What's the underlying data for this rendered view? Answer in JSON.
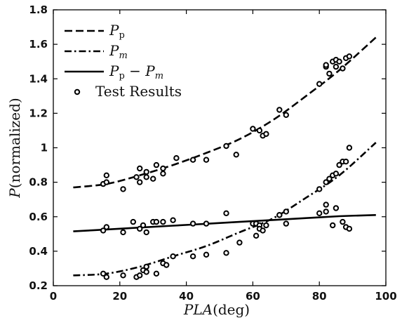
{
  "chart_data": {
    "type": "scatter",
    "title": "",
    "xlabel": {
      "var": "PLA",
      "unit": "(deg)"
    },
    "ylabel": {
      "var": "P",
      "unit": "(normalized)"
    },
    "xlim": [
      0,
      100
    ],
    "ylim": [
      0.2,
      1.8
    ],
    "x_ticks": [
      "0",
      "20",
      "40",
      "60",
      "80",
      "100"
    ],
    "y_ticks": [
      "0.2",
      "0.4",
      "0.6",
      "0.8",
      "1",
      "1.2",
      "1.4",
      "1.6",
      "1.8"
    ],
    "grid": false,
    "legend_position": "top-left",
    "legend": [
      {
        "main": "P",
        "sub": "p",
        "style": "dashed"
      },
      {
        "main": "P",
        "sub": "m",
        "style": "dashdot"
      },
      {
        "main": "P",
        "sub": "p",
        "minus": " − ",
        "main2": "P",
        "sub2": "m",
        "style": "solid"
      },
      {
        "label": "Test Results",
        "style": "marker"
      }
    ],
    "curve_x": [
      6,
      16,
      26,
      36,
      46,
      56,
      66,
      76,
      86,
      97
    ],
    "series": [
      {
        "name": "Pp",
        "style": "dashed",
        "values": [
          0.77,
          0.79,
          0.84,
          0.9,
          0.97,
          1.05,
          1.16,
          1.3,
          1.45,
          1.64
        ]
      },
      {
        "name": "Pm",
        "style": "dashdot",
        "values": [
          0.26,
          0.27,
          0.31,
          0.37,
          0.43,
          0.51,
          0.59,
          0.71,
          0.84,
          1.03
        ]
      },
      {
        "name": "Pp − Pm",
        "style": "solid",
        "values": [
          0.515,
          0.526,
          0.537,
          0.548,
          0.559,
          0.57,
          0.581,
          0.592,
          0.603,
          0.61
        ]
      }
    ],
    "test_results": {
      "name": "Test Results",
      "points": [
        [
          15,
          0.79
        ],
        [
          16,
          0.84
        ],
        [
          16,
          0.8
        ],
        [
          21,
          0.76
        ],
        [
          25,
          0.83
        ],
        [
          26,
          0.8
        ],
        [
          26,
          0.88
        ],
        [
          28,
          0.83
        ],
        [
          28,
          0.86
        ],
        [
          30,
          0.82
        ],
        [
          31,
          0.9
        ],
        [
          33,
          0.88
        ],
        [
          33,
          0.85
        ],
        [
          37,
          0.94
        ],
        [
          42,
          0.93
        ],
        [
          46,
          0.93
        ],
        [
          52,
          1.01
        ],
        [
          55,
          0.96
        ],
        [
          60,
          1.11
        ],
        [
          62,
          1.1
        ],
        [
          63,
          1.07
        ],
        [
          64,
          1.08
        ],
        [
          68,
          1.22
        ],
        [
          70,
          1.19
        ],
        [
          80,
          1.37
        ],
        [
          82,
          1.47
        ],
        [
          82,
          1.48
        ],
        [
          83,
          1.43
        ],
        [
          84,
          1.5
        ],
        [
          85,
          1.47
        ],
        [
          85,
          1.51
        ],
        [
          86,
          1.5
        ],
        [
          87,
          1.46
        ],
        [
          88,
          1.52
        ],
        [
          89,
          1.53
        ],
        [
          15,
          0.52
        ],
        [
          16,
          0.54
        ],
        [
          21,
          0.51
        ],
        [
          24,
          0.57
        ],
        [
          26,
          0.53
        ],
        [
          27,
          0.55
        ],
        [
          28,
          0.51
        ],
        [
          30,
          0.57
        ],
        [
          31,
          0.57
        ],
        [
          33,
          0.57
        ],
        [
          36,
          0.58
        ],
        [
          42,
          0.56
        ],
        [
          46,
          0.56
        ],
        [
          52,
          0.62
        ],
        [
          60,
          0.56
        ],
        [
          61,
          0.56
        ],
        [
          62,
          0.55
        ],
        [
          64,
          0.55
        ],
        [
          68,
          0.61
        ],
        [
          70,
          0.56
        ],
        [
          80,
          0.62
        ],
        [
          82,
          0.63
        ],
        [
          82,
          0.67
        ],
        [
          84,
          0.55
        ],
        [
          85,
          0.65
        ],
        [
          87,
          0.57
        ],
        [
          88,
          0.54
        ],
        [
          89,
          0.53
        ],
        [
          15,
          0.27
        ],
        [
          16,
          0.25
        ],
        [
          21,
          0.26
        ],
        [
          25,
          0.25
        ],
        [
          26,
          0.26
        ],
        [
          27,
          0.29
        ],
        [
          28,
          0.31
        ],
        [
          28,
          0.28
        ],
        [
          31,
          0.27
        ],
        [
          33,
          0.33
        ],
        [
          34,
          0.32
        ],
        [
          36,
          0.37
        ],
        [
          42,
          0.37
        ],
        [
          46,
          0.38
        ],
        [
          52,
          0.39
        ],
        [
          56,
          0.45
        ],
        [
          61,
          0.49
        ],
        [
          62,
          0.53
        ],
        [
          63,
          0.52
        ],
        [
          68,
          0.61
        ],
        [
          70,
          0.63
        ],
        [
          80,
          0.76
        ],
        [
          82,
          0.8
        ],
        [
          83,
          0.82
        ],
        [
          84,
          0.84
        ],
        [
          85,
          0.85
        ],
        [
          86,
          0.9
        ],
        [
          87,
          0.92
        ],
        [
          88,
          0.92
        ],
        [
          89,
          1.0
        ]
      ]
    }
  }
}
